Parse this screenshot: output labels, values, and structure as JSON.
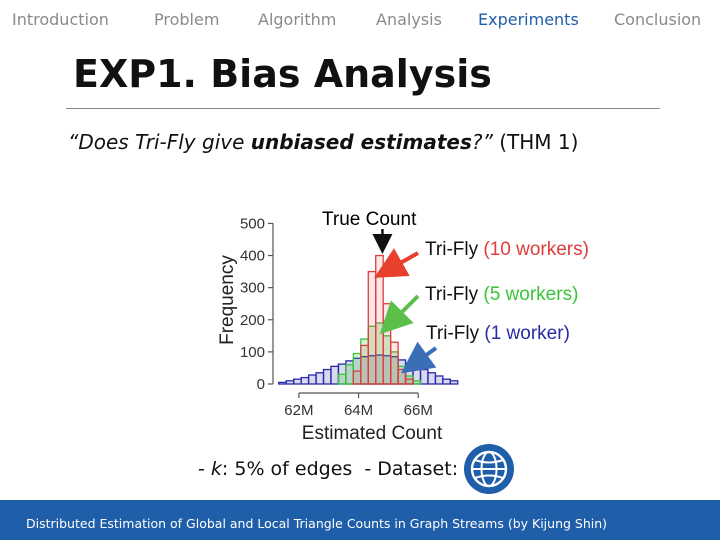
{
  "nav": {
    "items": [
      "Introduction",
      "Problem",
      "Algorithm",
      "Analysis",
      "Experiments",
      "Conclusion"
    ],
    "active": "Experiments"
  },
  "slide": {
    "title": "EXP1. Bias Analysis",
    "question": {
      "open": "“Does Tri-Fly give ",
      "emph": "unbiased estimates",
      "close": "?”",
      "ref": " (THM 1)"
    },
    "annotations": {
      "true_count": "True Count",
      "tri_fly": "Tri-Fly",
      "workers_10": " (10 workers)",
      "workers_5": " (5 workers)",
      "workers_1": " (1 worker)"
    },
    "footnote": {
      "k_prefix": "- ",
      "k_symbol": "k",
      "k_suffix": ": 5% of edges",
      "dataset": "- Dataset:"
    },
    "footer": "Distributed Estimation of Global and Local Triangle Counts in Graph Streams (by Kijung Shin)"
  },
  "icons": {
    "dataset": "globe-icon"
  },
  "colors": {
    "accent": "#1f5ea8",
    "nav_inactive": "#8a8a8a",
    "red": "#e03c3c",
    "green": "#3ac43a",
    "blue": "#2a2aa8",
    "arrow_red": "#e8402c",
    "arrow_green": "#5cbf4a",
    "arrow_blue": "#3a6fb8"
  },
  "chart_data": {
    "type": "bar",
    "xlabel": "Estimated Count",
    "ylabel": "Frequency",
    "x_ticks": [
      {
        "label": "62M",
        "value": 62
      },
      {
        "label": "64M",
        "value": 64
      },
      {
        "label": "66M",
        "value": 66
      }
    ],
    "y_ticks": [
      0,
      100,
      200,
      300,
      400,
      500
    ],
    "xlim": [
      61.3,
      67.6
    ],
    "ylim": [
      0,
      520
    ],
    "true_count": 64.8,
    "bin_width": 0.25,
    "series": [
      {
        "name": "Tri-Fly (1 worker)",
        "color": "blue",
        "bins": [
          [
            61.45,
            5
          ],
          [
            61.7,
            10
          ],
          [
            61.95,
            15
          ],
          [
            62.2,
            20
          ],
          [
            62.45,
            28
          ],
          [
            62.7,
            35
          ],
          [
            62.95,
            45
          ],
          [
            63.2,
            55
          ],
          [
            63.45,
            62
          ],
          [
            63.7,
            72
          ],
          [
            63.95,
            80
          ],
          [
            64.2,
            85
          ],
          [
            64.45,
            88
          ],
          [
            64.7,
            90
          ],
          [
            64.95,
            88
          ],
          [
            65.2,
            85
          ],
          [
            65.45,
            75
          ],
          [
            65.7,
            65
          ],
          [
            65.95,
            55
          ],
          [
            66.2,
            45
          ],
          [
            66.45,
            35
          ],
          [
            66.7,
            25
          ],
          [
            66.95,
            15
          ],
          [
            67.2,
            10
          ]
        ]
      },
      {
        "name": "Tri-Fly (5 workers)",
        "color": "green",
        "bins": [
          [
            63.45,
            30
          ],
          [
            63.7,
            60
          ],
          [
            63.95,
            95
          ],
          [
            64.2,
            140
          ],
          [
            64.45,
            180
          ],
          [
            64.7,
            190
          ],
          [
            64.95,
            150
          ],
          [
            65.2,
            100
          ],
          [
            65.45,
            55
          ],
          [
            65.7,
            25
          ],
          [
            65.95,
            10
          ]
        ]
      },
      {
        "name": "Tri-Fly (10 workers)",
        "color": "red",
        "bins": [
          [
            63.95,
            40
          ],
          [
            64.2,
            120
          ],
          [
            64.45,
            350
          ],
          [
            64.7,
            400
          ],
          [
            64.95,
            250
          ],
          [
            65.2,
            130
          ],
          [
            65.45,
            45
          ],
          [
            65.7,
            15
          ]
        ]
      }
    ]
  }
}
